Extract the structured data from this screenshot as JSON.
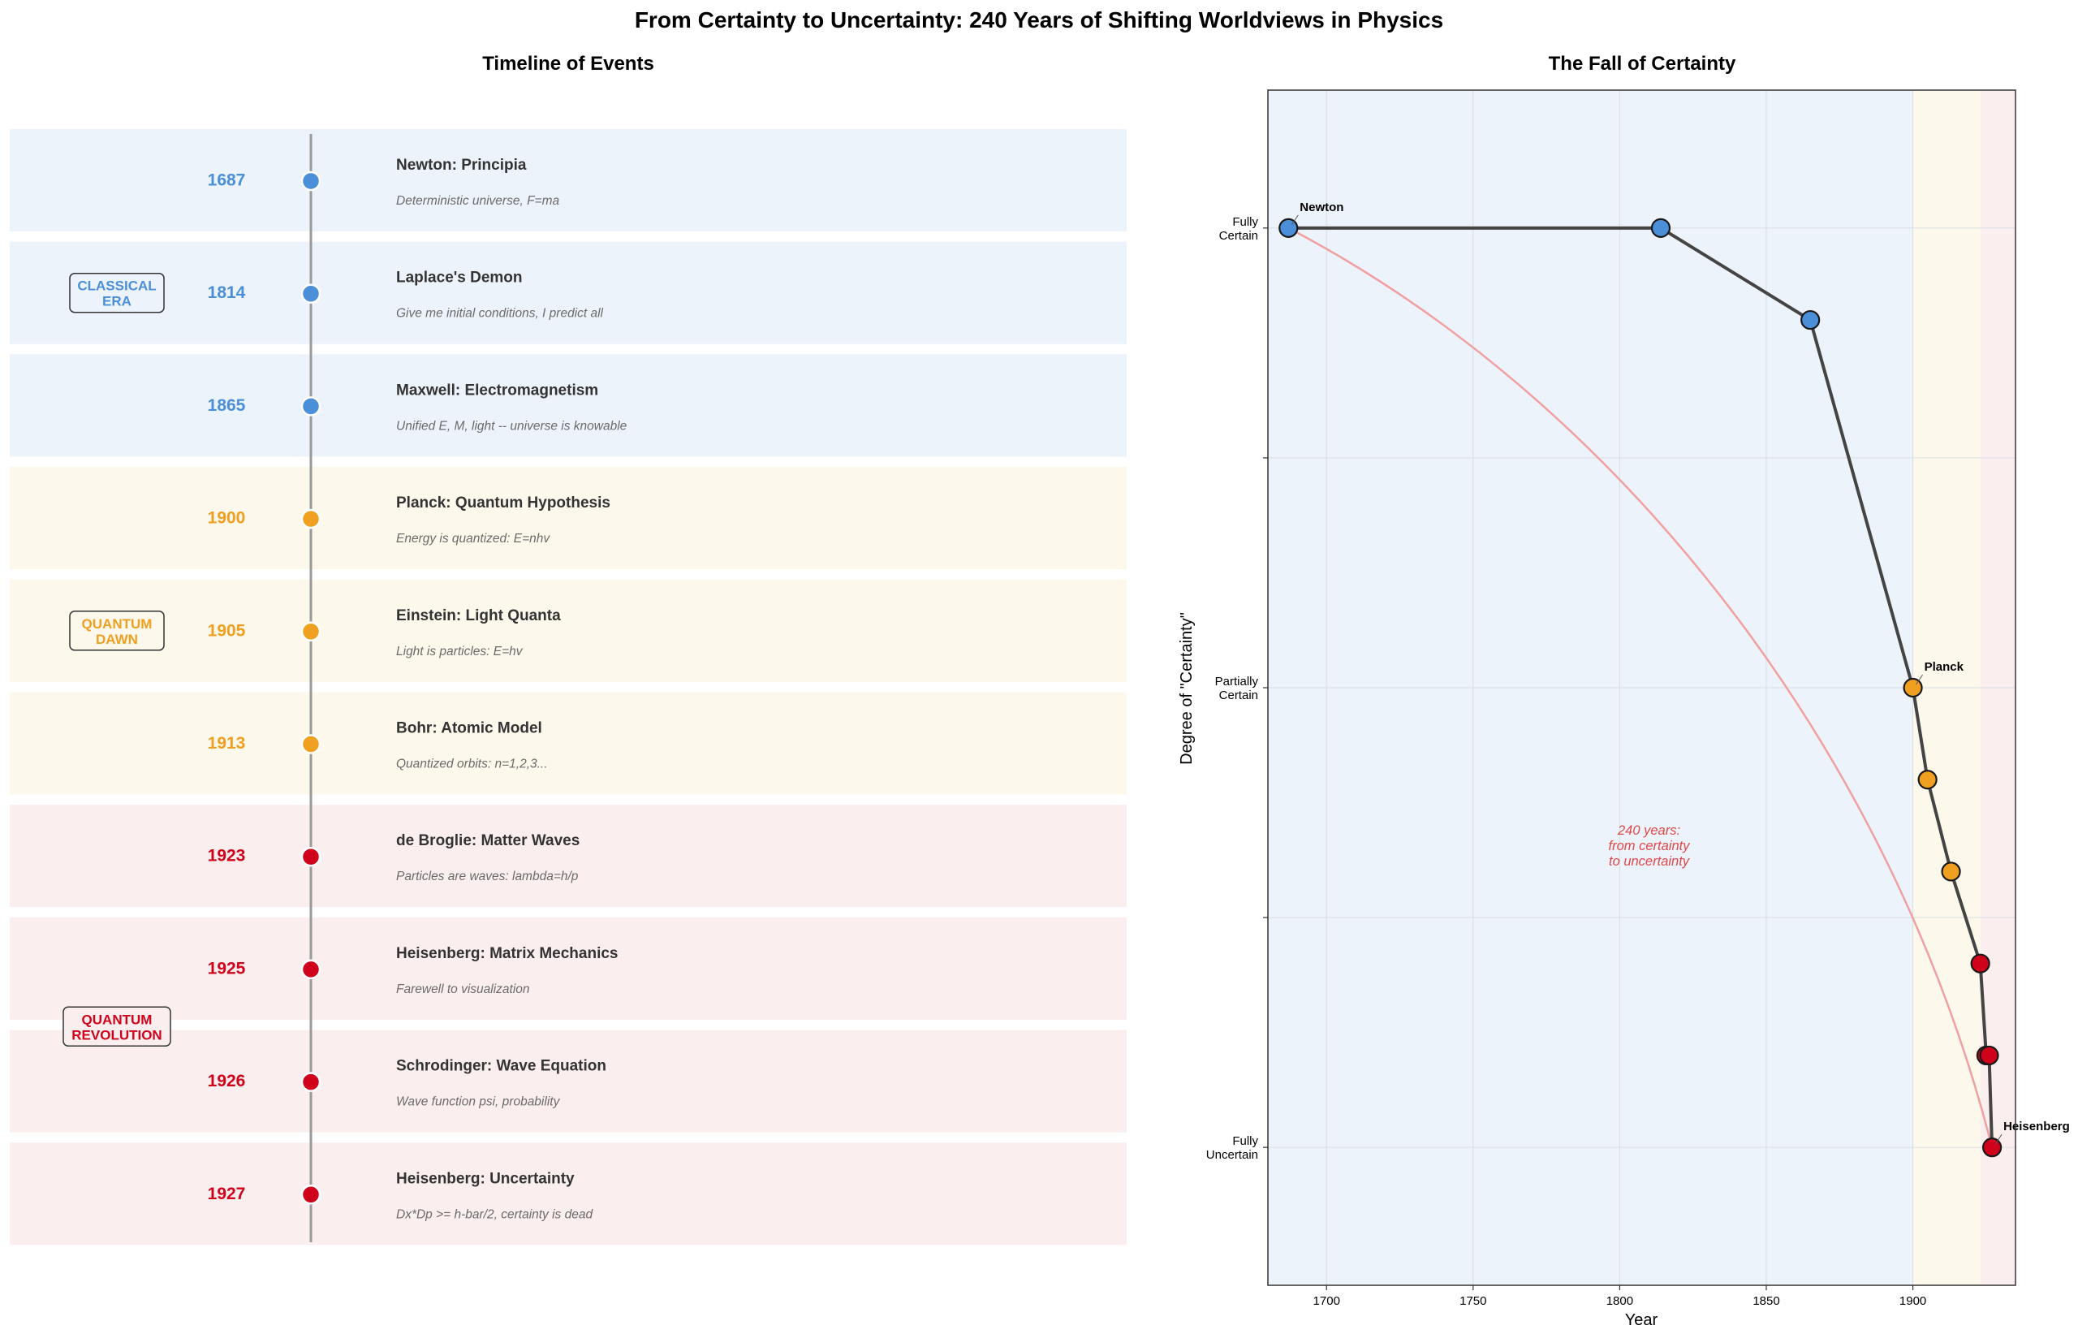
{
  "figure_title": "From Certainty to Uncertainty: 240 Years of Shifting Worldviews in Physics",
  "colors": {
    "classical": "#4a8fd8",
    "quantum_dawn": "#f0a020",
    "quantum_revolution": "#d0021b",
    "classical_bg": "#edf3fb",
    "dawn_bg": "#fdf8ec",
    "revolution_bg": "#fbeeee",
    "main_line": "#444444",
    "trend_line": "#f0a0a0"
  },
  "timeline": {
    "title": "Timeline of Events",
    "eras": [
      {
        "label_line1": "CLASSICAL",
        "label_line2": "ERA",
        "color_key": "classical"
      },
      {
        "label_line1": "QUANTUM",
        "label_line2": "DAWN",
        "color_key": "quantum_dawn"
      },
      {
        "label_line1": "QUANTUM",
        "label_line2": "REVOLUTION",
        "color_key": "quantum_revolution"
      }
    ],
    "events": [
      {
        "year": "1687",
        "title": "Newton: Principia",
        "desc": "Deterministic universe, F=ma",
        "era": 0
      },
      {
        "year": "1814",
        "title": "Laplace's Demon",
        "desc": "Give me initial conditions, I predict all",
        "era": 0
      },
      {
        "year": "1865",
        "title": "Maxwell: Electromagnetism",
        "desc": "Unified E, M, light -- universe is knowable",
        "era": 0
      },
      {
        "year": "1900",
        "title": "Planck: Quantum Hypothesis",
        "desc": "Energy is quantized: E=nhv",
        "era": 1
      },
      {
        "year": "1905",
        "title": "Einstein: Light Quanta",
        "desc": "Light is particles: E=hv",
        "era": 1
      },
      {
        "year": "1913",
        "title": "Bohr: Atomic Model",
        "desc": "Quantized orbits: n=1,2,3...",
        "era": 1
      },
      {
        "year": "1923",
        "title": "de Broglie: Matter Waves",
        "desc": "Particles are waves: lambda=h/p",
        "era": 2
      },
      {
        "year": "1925",
        "title": "Heisenberg: Matrix Mechanics",
        "desc": "Farewell to visualization",
        "era": 2
      },
      {
        "year": "1926",
        "title": "Schrodinger: Wave Equation",
        "desc": "Wave function psi, probability",
        "era": 2
      },
      {
        "year": "1927",
        "title": "Heisenberg: Uncertainty",
        "desc": "Dx*Dp >= h-bar/2, certainty is dead",
        "era": 2
      }
    ]
  },
  "chart_data": {
    "type": "line",
    "title": "The Fall of Certainty",
    "xlabel": "Year",
    "ylabel": "Degree of \"Certainty\"",
    "xlim": [
      1680,
      1935
    ],
    "ylim": [
      -0.15,
      1.15
    ],
    "x_ticks": [
      1700,
      1750,
      1800,
      1850,
      1900
    ],
    "y_ticks": [
      {
        "value": 1.0,
        "line1": "Fully",
        "line2": "Certain"
      },
      {
        "value": 0.75,
        "line1": "",
        "line2": ""
      },
      {
        "value": 0.5,
        "line1": "Partially",
        "line2": "Certain"
      },
      {
        "value": 0.25,
        "line1": "",
        "line2": ""
      },
      {
        "value": 0.0,
        "line1": "Fully",
        "line2": "Uncertain"
      }
    ],
    "grid": true,
    "era_shading": [
      {
        "from": 1680,
        "to": 1900,
        "color_key": "classical_bg"
      },
      {
        "from": 1900,
        "to": 1923,
        "color_key": "dawn_bg"
      },
      {
        "from": 1923,
        "to": 1935,
        "color_key": "revolution_bg"
      }
    ],
    "points": [
      {
        "x": 1687,
        "y": 1.0,
        "era": 0
      },
      {
        "x": 1814,
        "y": 1.0,
        "era": 0
      },
      {
        "x": 1865,
        "y": 0.9,
        "era": 0
      },
      {
        "x": 1900,
        "y": 0.5,
        "era": 1
      },
      {
        "x": 1905,
        "y": 0.4,
        "era": 1
      },
      {
        "x": 1913,
        "y": 0.3,
        "era": 1
      },
      {
        "x": 1923,
        "y": 0.2,
        "era": 2
      },
      {
        "x": 1925,
        "y": 0.1,
        "era": 2
      },
      {
        "x": 1926,
        "y": 0.1,
        "era": 2
      },
      {
        "x": 1927,
        "y": 0.0,
        "era": 2
      }
    ],
    "annotations": [
      {
        "text": "Newton",
        "point_index": 0
      },
      {
        "text": "Planck",
        "point_index": 3
      },
      {
        "text": "Heisenberg",
        "point_index": 9
      }
    ],
    "center_note": [
      "240 years:",
      "from certainty",
      "to uncertainty"
    ]
  }
}
